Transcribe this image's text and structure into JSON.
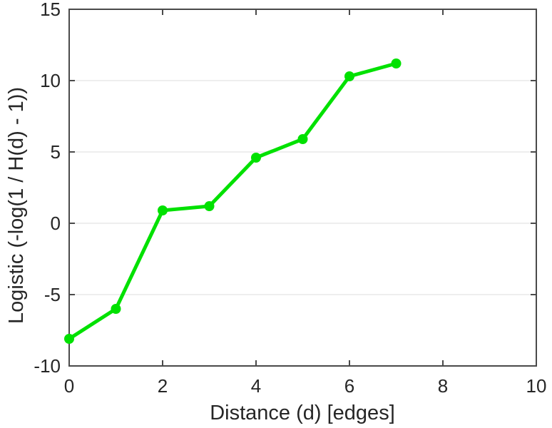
{
  "chart_data": {
    "type": "line",
    "title": "",
    "xlabel": "Distance (d) [edges]",
    "ylabel": "Logistic (-log(1 / H(d) - 1))",
    "x": [
      0,
      1,
      2,
      3,
      4,
      5,
      6,
      7
    ],
    "y": [
      -8.1,
      -6.0,
      0.9,
      1.2,
      4.6,
      5.9,
      10.3,
      11.2
    ],
    "xlim": [
      0,
      10
    ],
    "ylim": [
      -10,
      15
    ],
    "xticks": [
      0,
      2,
      4,
      6,
      8,
      10
    ],
    "yticks": [
      -10,
      -5,
      0,
      5,
      10,
      15
    ],
    "grid": "horizontal-only",
    "legend": "none",
    "marker": "circle",
    "line_width": 5,
    "colors": {
      "line": "#00e100",
      "axis": "#4a4a4a",
      "grid": "#e8e8e8",
      "text": "#262626",
      "background": "#ffffff"
    }
  }
}
